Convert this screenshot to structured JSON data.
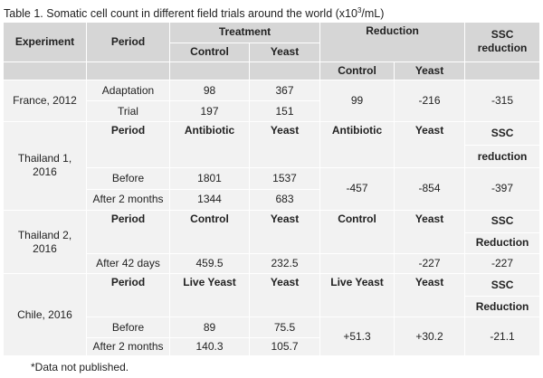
{
  "caption": {
    "text": "Table 1. Somatic cell count in different field trials around the world (x10",
    "sup": "3",
    "suffix": "/mL)"
  },
  "header": {
    "experiment": "Experiment",
    "period": "Period",
    "treatment": "Treatment",
    "reduction": "Reduction",
    "ssc_line1": "SSC",
    "ssc_line2": "reduction",
    "control": "Control",
    "yeast": "Yeast"
  },
  "france": {
    "label": "France, 2012",
    "rows": [
      {
        "period": "Adaptation",
        "control": "98",
        "yeast": "367"
      },
      {
        "period": "Trial",
        "control": "197",
        "yeast": "151"
      }
    ],
    "red_control": "99",
    "red_yeast": "-216",
    "ssc": "-315"
  },
  "thailand1": {
    "label": "Thailand 1, 2016",
    "head": {
      "period": "Period",
      "c1": "Antibiotic",
      "c2": "Yeast",
      "r1": "Antibiotic",
      "r2": "Yeast",
      "ssc1": "SSC",
      "ssc2": "reduction"
    },
    "rows": [
      {
        "period": "Before",
        "v1": "1801",
        "v2": "1537"
      },
      {
        "period": "After 2 months",
        "v1": "1344",
        "v2": "683"
      }
    ],
    "red1": "-457",
    "red2": "-854",
    "ssc": "-397"
  },
  "thailand2": {
    "label": "Thailand 2, 2016",
    "head": {
      "period": "Period",
      "c1": "Control",
      "c2": "Yeast",
      "r1": "Control",
      "r2": "Yeast",
      "ssc1": "SSC",
      "ssc2": "Reduction"
    },
    "row": {
      "period": "After 42 days",
      "v1": "459.5",
      "v2": "232.5",
      "red2": "-227",
      "ssc": "-227"
    }
  },
  "chile": {
    "label": "Chile, 2016",
    "head": {
      "period": "Period",
      "c1": "Live Yeast",
      "c2": "Yeast",
      "r1": "Live Yeast",
      "r2": "Yeast",
      "ssc1": "SSC",
      "ssc2": "Reduction"
    },
    "rows": [
      {
        "period": "Before",
        "v1": "89",
        "v2": "75.5"
      },
      {
        "period": "After 2 months",
        "v1": "140.3",
        "v2": "105.7"
      }
    ],
    "red1": "+51.3",
    "red2": "+30.2",
    "ssc": "-21.1"
  },
  "footnote": "*Data not published."
}
